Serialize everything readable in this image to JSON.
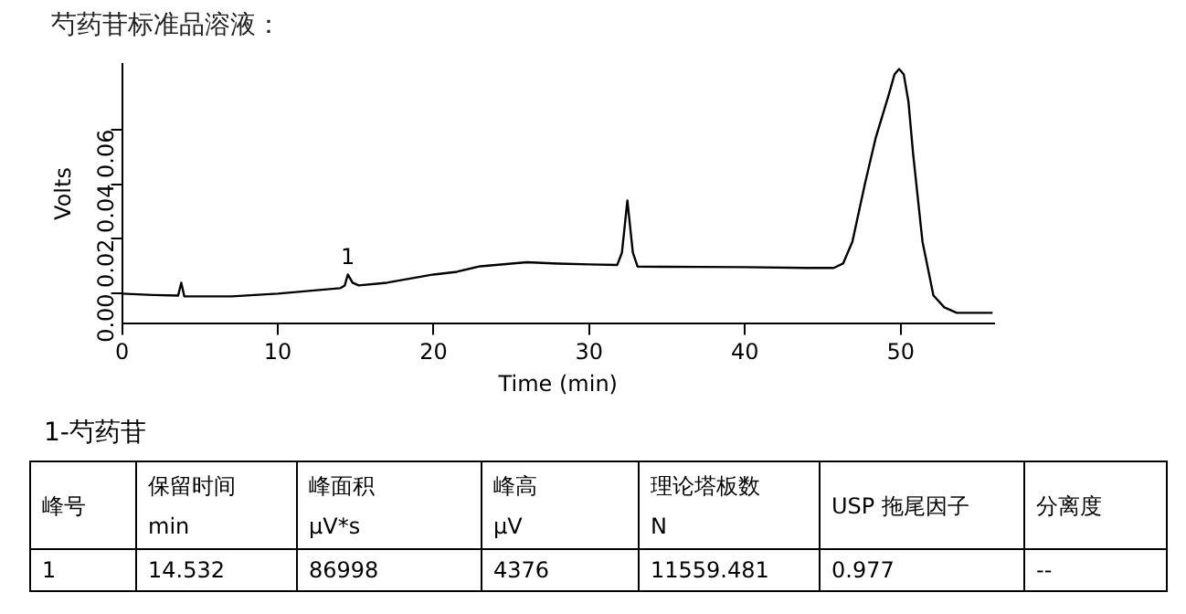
{
  "chart_data": {
    "type": "line",
    "title": "芍药苷标准品溶液：",
    "xlabel": "Time (min)",
    "ylabel": "Volts",
    "x": [
      0,
      2,
      3.6,
      3.8,
      4.0,
      5,
      7,
      9,
      10,
      12,
      14,
      14.3,
      14.5,
      14.8,
      15.2,
      17,
      20,
      21.5,
      23,
      26,
      28,
      30,
      31.8,
      32.1,
      32.45,
      32.8,
      33.1,
      35,
      40,
      44,
      45.7,
      46.3,
      46.9,
      47.7,
      48.4,
      49.2,
      49.6,
      49.9,
      50.2,
      50.5,
      50.8,
      51.4,
      52.1,
      52.8,
      53.6,
      55.9
    ],
    "series": [
      {
        "color": "#000000",
        "values": [
          0,
          -0.0005,
          -0.0007,
          0.004,
          -0.001,
          -0.001,
          -0.001,
          -0.0003,
          0,
          0.001,
          0.002,
          0.003,
          0.007,
          0.004,
          0.003,
          0.004,
          0.007,
          0.008,
          0.01,
          0.0115,
          0.011,
          0.0107,
          0.0105,
          0.015,
          0.034,
          0.015,
          0.0099,
          0.0098,
          0.0097,
          0.0094,
          0.0094,
          0.011,
          0.019,
          0.04,
          0.057,
          0.072,
          0.08,
          0.082,
          0.08,
          0.07,
          0.051,
          0.019,
          -0.0006,
          -0.005,
          -0.007,
          -0.007
        ]
      }
    ],
    "xlim": [
      0,
      56
    ],
    "xticks": [
      0,
      10,
      20,
      30,
      40,
      50
    ],
    "ylim": [
      -0.011,
      0.084
    ],
    "yticks": [
      {
        "value": 0,
        "label": "0.00"
      },
      {
        "value": 0.02,
        "label": "0.02"
      },
      {
        "value": 0.04,
        "label": "0.04"
      },
      {
        "value": 0.06,
        "label": "0.06"
      }
    ],
    "grid": false,
    "legend": false,
    "marker": "none",
    "line_style": "solid",
    "annotations": [
      {
        "text": "1",
        "x": 14.5,
        "y": 0.007
      },
      "1-芍药苷",
      "峰号",
      "保留时间\nmin",
      "峰面积\nμV*s",
      "峰高\nμV",
      "理论塔板数\nN",
      "USP 拖尾因子",
      "分离度",
      "1",
      "14.532",
      "86998",
      "4376",
      "11559.481",
      "0.977",
      "--"
    ]
  }
}
